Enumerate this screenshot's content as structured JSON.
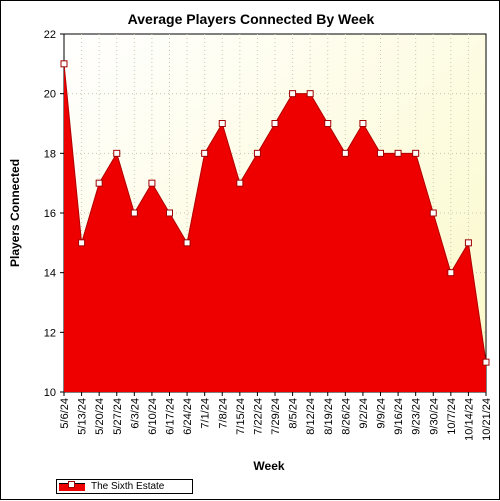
{
  "chart_data": {
    "type": "area",
    "title": "Average Players Connected By Week",
    "xlabel": "Week",
    "ylabel": "Players Connected",
    "ylim": [
      10,
      22
    ],
    "yticks": [
      10,
      12,
      14,
      16,
      18,
      20,
      22
    ],
    "grid": true,
    "legend_position": "bottom-left",
    "categories": [
      "5/6/24",
      "5/13/24",
      "5/20/24",
      "5/27/24",
      "6/3/24",
      "6/10/24",
      "6/17/24",
      "6/24/24",
      "7/1/24",
      "7/8/24",
      "7/15/24",
      "7/22/24",
      "7/29/24",
      "8/5/24",
      "8/12/24",
      "8/19/24",
      "8/26/24",
      "9/2/24",
      "9/9/24",
      "9/16/24",
      "9/23/24",
      "9/30/24",
      "10/7/24",
      "10/14/24",
      "10/21/24"
    ],
    "series": [
      {
        "name": "The Sixth Estate",
        "color": "#ee0000",
        "values": [
          21,
          15,
          17,
          18,
          16,
          17,
          16,
          15,
          18,
          19,
          17,
          18,
          19,
          20,
          20,
          19,
          18,
          19,
          18,
          18,
          18,
          16,
          14,
          15,
          11
        ]
      }
    ],
    "background_gradient": [
      "#ffffff",
      "#fbf9c8"
    ]
  }
}
